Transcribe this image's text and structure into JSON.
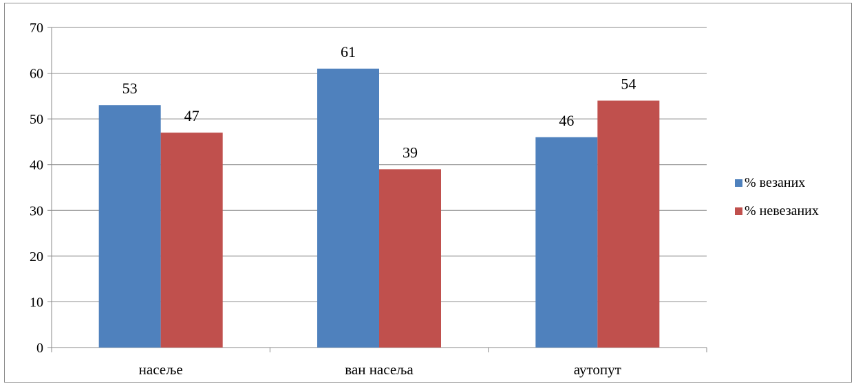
{
  "chart_data": {
    "type": "bar",
    "categories": [
      "насеље",
      "ван насеља",
      "аутопут"
    ],
    "series": [
      {
        "name": "% везаних",
        "values": [
          53,
          61,
          46
        ],
        "color": "#4f81bd"
      },
      {
        "name": "% невезаних",
        "values": [
          47,
          39,
          54
        ],
        "color": "#c0504d"
      }
    ],
    "ylim": [
      0,
      70
    ],
    "yticks": [
      0,
      10,
      20,
      30,
      40,
      50,
      60,
      70
    ],
    "grid": true,
    "legend": "right",
    "title": "",
    "xlabel": "",
    "ylabel": ""
  }
}
